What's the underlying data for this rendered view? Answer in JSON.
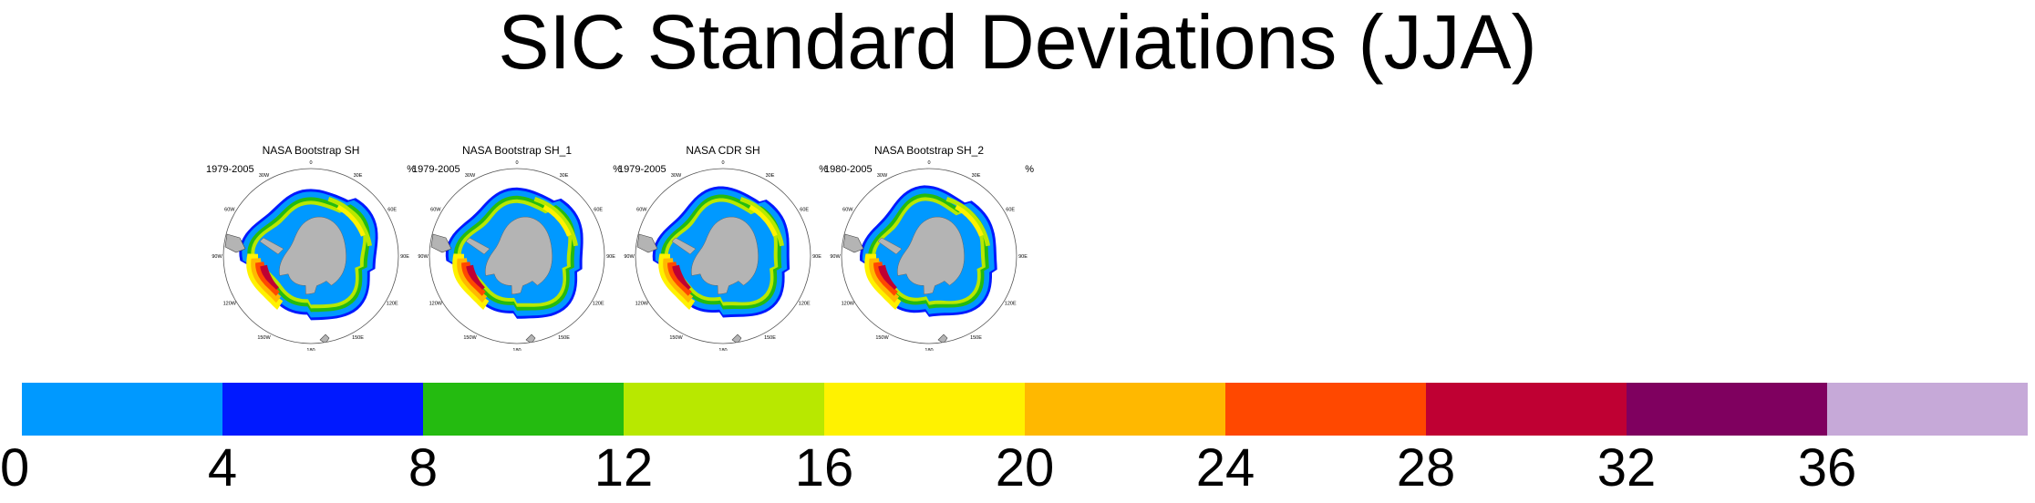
{
  "title": "SIC Standard Deviations (JJA)",
  "panels": [
    {
      "title": "NASA Bootstrap SH",
      "period": "1979-2005",
      "units": "%"
    },
    {
      "title": "NASA Bootstrap SH_1",
      "period": "1979-2005",
      "units": "%"
    },
    {
      "title": "NASA CDR SH",
      "period": "1979-2005",
      "units": "%"
    },
    {
      "title": "NASA Bootstrap SH_2",
      "period": "1980-2005",
      "units": "%"
    }
  ],
  "lon_labels": [
    "0",
    "30E",
    "60E",
    "90E",
    "120E",
    "150E",
    "180",
    "150W",
    "120W",
    "90W",
    "60W",
    "30W"
  ],
  "chart_data": {
    "type": "heatmap",
    "title": "SIC Standard Deviations (JJA)",
    "colorbar": {
      "levels": [
        0,
        4,
        8,
        12,
        16,
        20,
        24,
        28,
        32,
        36
      ],
      "tick_labels": [
        "0",
        "4",
        "8",
        "12",
        "16",
        "20",
        "24",
        "28",
        "32",
        "36"
      ],
      "colors": [
        "#0099ff",
        "#0019ff",
        "#24bb10",
        "#b8e800",
        "#fff200",
        "#ffb800",
        "#ff4800",
        "#bf0033",
        "#7f005f",
        "#c6a9d8"
      ],
      "units": "%"
    },
    "land_color": "#b4b4b4",
    "ocean_low_color": "#0099ff"
  }
}
